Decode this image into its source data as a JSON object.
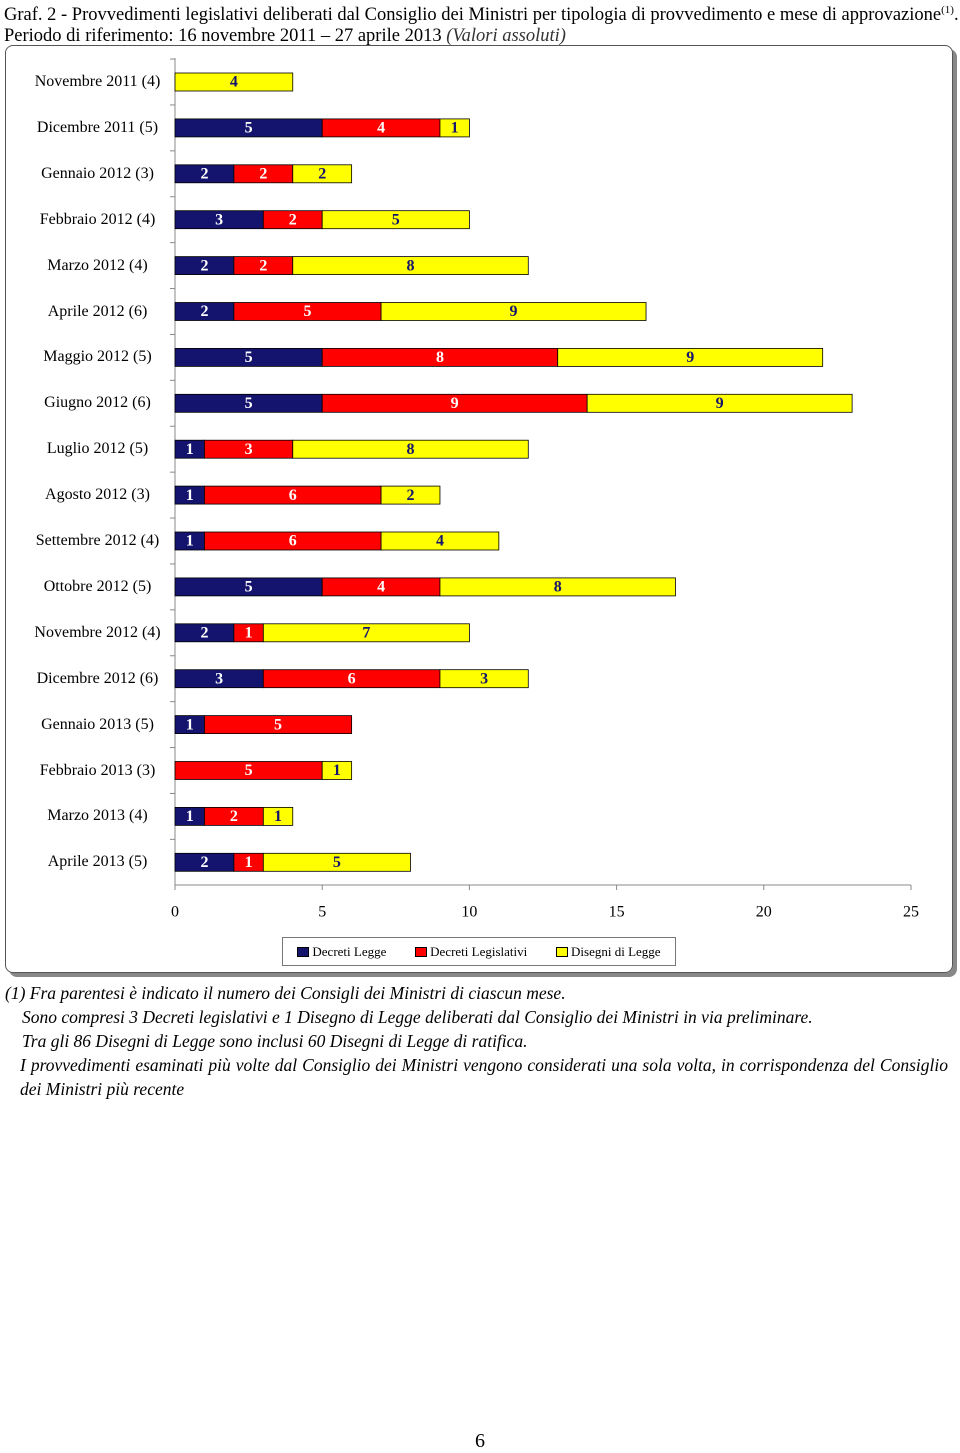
{
  "chart_data": {
    "type": "bar",
    "orientation": "horizontal",
    "stacked": true,
    "title": "Graf. 2 - Provvedimenti legislativi deliberati dal Consiglio dei Ministri per tipologia di provvedimento e mese di approvazione",
    "title_ref": "(1)",
    "subtitle": ". Periodo di riferimento: 16 novembre 2011 – 27 aprile 2013",
    "unit_note": "(Valori assoluti)",
    "categories": [
      "Novembre 2011 (4)",
      "Dicembre 2011 (5)",
      "Gennaio 2012 (3)",
      "Febbraio 2012 (4)",
      "Marzo 2012 (4)",
      "Aprile 2012 (6)",
      "Maggio 2012 (5)",
      "Giugno 2012 (6)",
      "Luglio 2012 (5)",
      "Agosto 2012 (3)",
      "Settembre 2012 (4)",
      "Ottobre 2012 (5)",
      "Novembre 2012 (4)",
      "Dicembre 2012 (6)",
      "Gennaio 2013 (5)",
      "Febbraio 2013 (3)",
      "Marzo 2013 (4)",
      "Aprile 2013 (5)"
    ],
    "series": [
      {
        "name": "Decreti Legge",
        "color": "#14146e",
        "label_color": "#ffffff",
        "values": [
          0,
          5,
          2,
          3,
          2,
          2,
          5,
          5,
          1,
          1,
          1,
          5,
          2,
          3,
          1,
          0,
          1,
          2
        ]
      },
      {
        "name": "Decreti Legislativi",
        "color": "#ff0000",
        "label_color": "#ffffff",
        "values": [
          0,
          4,
          2,
          2,
          2,
          5,
          8,
          9,
          3,
          6,
          6,
          4,
          1,
          6,
          5,
          5,
          2,
          1
        ]
      },
      {
        "name": "Disegni di Legge",
        "color": "#ffff00",
        "label_color": "#14146e",
        "values": [
          4,
          1,
          2,
          5,
          8,
          9,
          9,
          9,
          8,
          2,
          4,
          8,
          7,
          3,
          0,
          1,
          1,
          5
        ]
      }
    ],
    "xlim": [
      0,
      25
    ],
    "xticks": [
      0,
      5,
      10,
      15,
      20,
      25
    ],
    "grid": false,
    "legend": "bottom"
  },
  "notes": [
    "(1) Fra parentesi è indicato il numero dei Consigli dei Ministri di ciascun mese.",
    "Sono compresi 3 Decreti legislativi e 1 Disegno di Legge deliberati dal Consiglio dei Ministri in via preliminare.",
    "Tra gli 86 Disegni di Legge sono inclusi 60 Disegni di Legge di ratifica.",
    "I provvedimenti esaminati più volte dal Consiglio dei Ministri vengono considerati una sola volta, in corrispondenza del Consiglio dei Ministri più recente"
  ],
  "page_number": "6"
}
